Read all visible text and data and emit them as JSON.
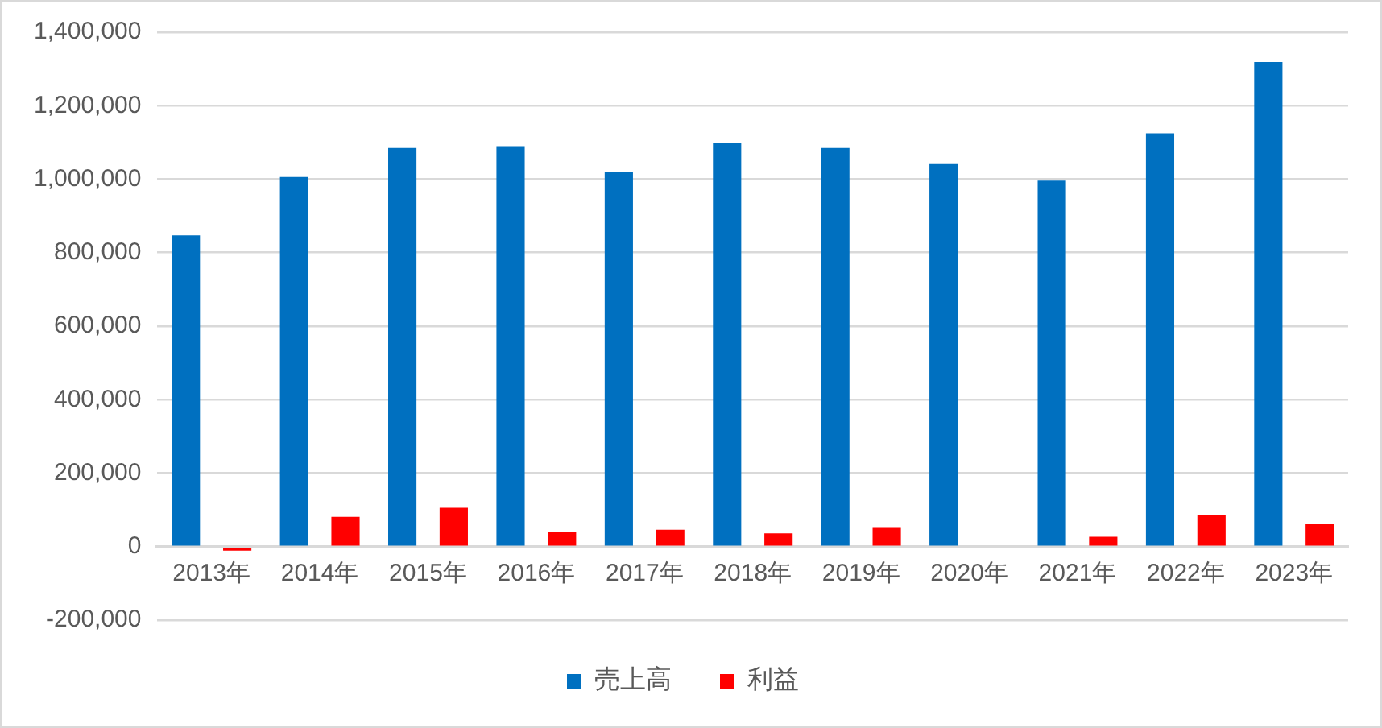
{
  "chart_data": {
    "type": "bar",
    "categories": [
      "2013年",
      "2014年",
      "2015年",
      "2016年",
      "2017年",
      "2018年",
      "2019年",
      "2020年",
      "2021年",
      "2022年",
      "2023年"
    ],
    "series": [
      {
        "name": "売上高",
        "color": "#0070c0",
        "values": [
          847000,
          1006000,
          1085000,
          1090000,
          1021000,
          1100000,
          1085000,
          1041000,
          996000,
          1125000,
          1319000
        ]
      },
      {
        "name": "利益",
        "color": "#ff0000",
        "values": [
          -11000,
          81000,
          106000,
          41000,
          46000,
          36000,
          51000,
          0,
          27000,
          86000,
          61000
        ]
      }
    ],
    "ylim": [
      -200000,
      1400000
    ],
    "yticks": [
      {
        "value": -200000,
        "label": "-200,000"
      },
      0,
      {
        "value": 200000,
        "label": "200,000"
      },
      {
        "value": 400000,
        "label": "400,000"
      },
      {
        "value": 600000,
        "label": "600,000"
      },
      {
        "value": 800000,
        "label": "800,000"
      },
      {
        "value": 1000000,
        "label": "1,000,000"
      },
      {
        "value": 1200000,
        "label": "1,200,000"
      },
      {
        "value": 1400000,
        "label": "1,400,000"
      }
    ],
    "grid": "y",
    "legend": "bottom"
  }
}
